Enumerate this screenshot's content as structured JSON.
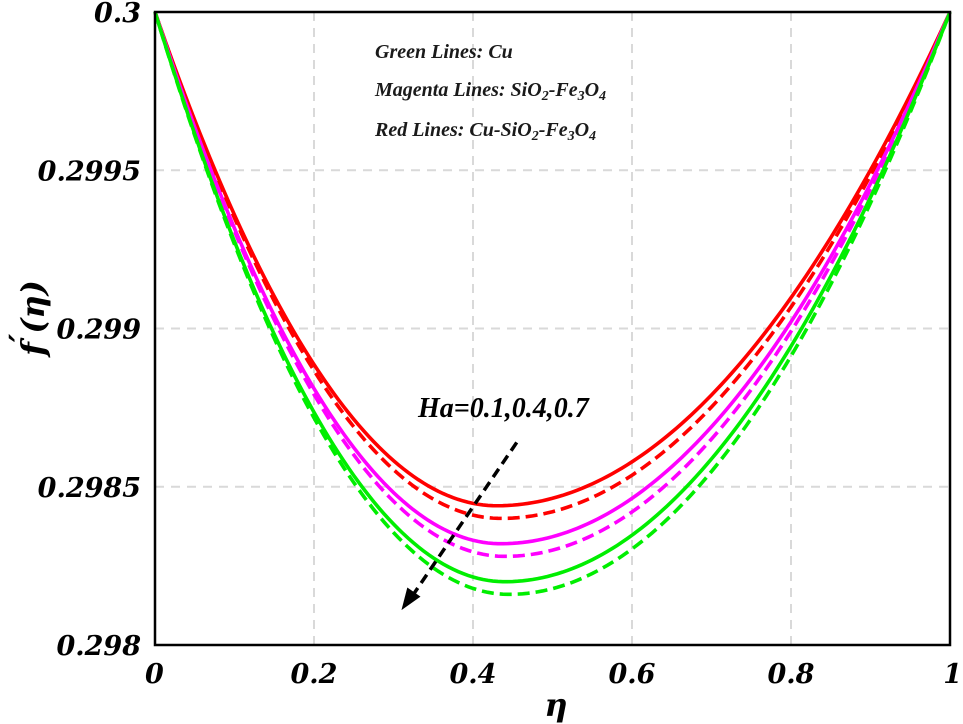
{
  "chart_data": {
    "type": "line",
    "title": "",
    "xlabel": "η",
    "ylabel_prefix": "f",
    "ylabel_prime": "′",
    "ylabel_suffix": "(η)",
    "xlim": [
      0,
      1
    ],
    "ylim": [
      0.298,
      0.3
    ],
    "grid": true,
    "x_ticks": [
      0,
      0.2,
      0.4,
      0.6,
      0.8,
      1
    ],
    "x_tick_labels": [
      "0",
      "0.2",
      "0.4",
      "0.6",
      "0.8",
      "1"
    ],
    "y_ticks": [
      0.298,
      0.2985,
      0.299,
      0.2995,
      0.3
    ],
    "y_tick_labels": [
      "0.298",
      "0.2985",
      "0.299",
      "0.2995",
      "0.3"
    ],
    "legend_placement": "top-center",
    "legend": [
      {
        "parts": [
          {
            "t": "Green Lines: Cu"
          }
        ]
      },
      {
        "parts": [
          {
            "t": "Magenta Lines: SiO"
          },
          {
            "t": "2",
            "sub": true
          },
          {
            "t": "-Fe"
          },
          {
            "t": "3",
            "sub": true
          },
          {
            "t": "O"
          },
          {
            "t": "4",
            "sub": true
          }
        ]
      },
      {
        "parts": [
          {
            "t": "Red Lines: Cu-SiO"
          },
          {
            "t": "2",
            "sub": true
          },
          {
            "t": "-Fe"
          },
          {
            "t": "3",
            "sub": true
          },
          {
            "t": "O"
          },
          {
            "t": "4",
            "sub": true
          }
        ]
      }
    ],
    "annotation": {
      "text": "Ha=0.1,0.4,0.7",
      "arrow_from": [
        0.455,
        0.29864
      ],
      "arrow_to": [
        0.31,
        0.29811
      ]
    },
    "series": [
      {
        "name": "Cu-SiO2-Fe3O4 (red, solid)",
        "color": "#ff0000",
        "dash": "solid",
        "min_y": 0.29844,
        "min_x": 0.43
      },
      {
        "name": "Cu-SiO2-Fe3O4 (red, dashed)",
        "color": "#ff0000",
        "dash": "dashed",
        "min_y": 0.2984,
        "min_x": 0.435
      },
      {
        "name": "SiO2-Fe3O4 (magenta, solid)",
        "color": "#ff00ff",
        "dash": "solid",
        "min_y": 0.29832,
        "min_x": 0.435
      },
      {
        "name": "SiO2-Fe3O4 (magenta, dashed)",
        "color": "#ff00ff",
        "dash": "dashed",
        "min_y": 0.29828,
        "min_x": 0.44
      },
      {
        "name": "Cu (green, solid)",
        "color": "#00ee00",
        "dash": "solid",
        "min_y": 0.2982,
        "min_x": 0.44
      },
      {
        "name": "Cu (green, dashed)",
        "color": "#00ee00",
        "dash": "dashed",
        "min_y": 0.29816,
        "min_x": 0.445
      }
    ]
  }
}
